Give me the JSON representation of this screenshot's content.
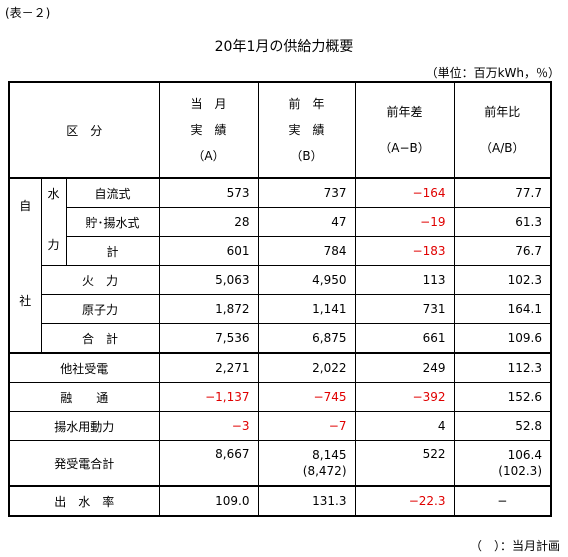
{
  "tag": "(表－２)",
  "title": "20年1月の供給力概要",
  "unit": "（単位：百万kWh，％）",
  "note": "（　）：当月計画",
  "header": {
    "category": "区　分",
    "col1": [
      "当　月",
      "実　績",
      "（A）"
    ],
    "col2": [
      "前　年",
      "実　績",
      "（B）"
    ],
    "col3": [
      "前年差",
      "（A−B）"
    ],
    "col4": [
      "前年比",
      "（A/B）"
    ]
  },
  "side": {
    "ji": "自",
    "sha": "社",
    "sui": "水",
    "ryoku": "力"
  },
  "rows": {
    "jiryu": {
      "label": "自流式",
      "a": "573",
      "b": "737",
      "diff": "−164",
      "ratio": "77.7"
    },
    "choyosui": {
      "label": "貯･揚水式",
      "a": "28",
      "b": "47",
      "diff": "−19",
      "ratio": "61.3"
    },
    "kei": {
      "label": "計",
      "a": "601",
      "b": "784",
      "diff": "−183",
      "ratio": "76.7"
    },
    "karyoku": {
      "label": "火　力",
      "a": "5,063",
      "b": "4,950",
      "diff": "113",
      "ratio": "102.3"
    },
    "genshi": {
      "label": "原子力",
      "a": "1,872",
      "b": "1,141",
      "diff": "731",
      "ratio": "164.1"
    },
    "goukei": {
      "label": "合　計",
      "a": "7,536",
      "b": "6,875",
      "diff": "661",
      "ratio": "109.6"
    },
    "tasha": {
      "label": "他社受電",
      "a": "2,271",
      "b": "2,022",
      "diff": "249",
      "ratio": "112.3"
    },
    "yuzu": {
      "label": "融　　通",
      "a": "−1,137",
      "b": "−745",
      "diff": "−392",
      "ratio": "152.6"
    },
    "yosui": {
      "label": "揚水用動力",
      "a": "−3",
      "b": "−7",
      "diff": "4",
      "ratio": "52.8"
    },
    "hatsuju": {
      "label": "発受電合計",
      "a": "8,667",
      "b": "8,145",
      "b_plan": "(8,472)",
      "diff": "522",
      "ratio": "106.4",
      "ratio_plan": "(102.3)"
    },
    "shussui": {
      "label": "出　水　率",
      "a": "109.0",
      "b": "131.3",
      "diff": "−22.3",
      "ratio": "−"
    }
  }
}
